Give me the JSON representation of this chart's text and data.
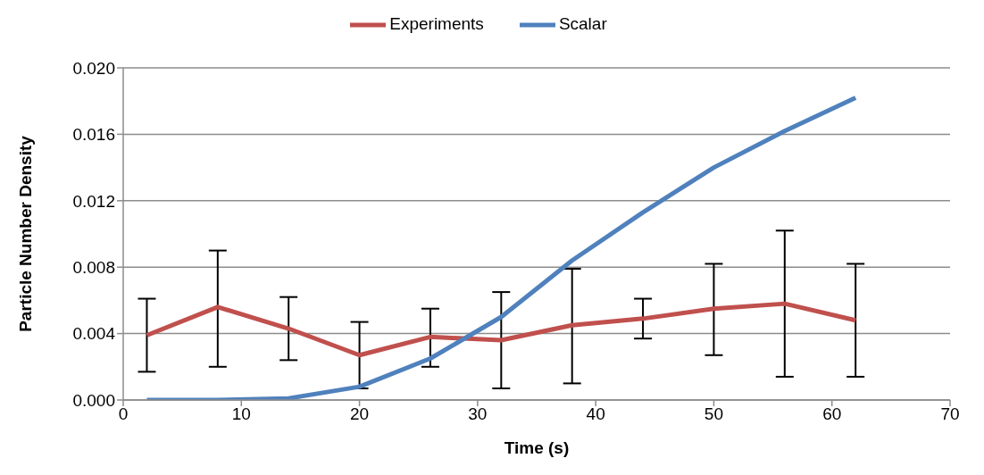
{
  "chart_data": {
    "type": "line",
    "xlabel": "Time (s)",
    "ylabel": "Particle Number Density",
    "x": [
      2,
      8,
      14,
      20,
      26,
      32,
      38,
      44,
      50,
      56,
      62
    ],
    "series": [
      {
        "name": "Experiments",
        "color": "#c0504d",
        "values": [
          0.0039,
          0.0056,
          0.0043,
          0.0027,
          0.0038,
          0.0036,
          0.0045,
          0.0049,
          0.0055,
          0.0058,
          0.0048
        ],
        "errors": [
          [
            0.0017,
            0.0061
          ],
          [
            0.002,
            0.009
          ],
          [
            0.0024,
            0.0062
          ],
          [
            0.0007,
            0.0047
          ],
          [
            0.002,
            0.0055
          ],
          [
            0.0007,
            0.0065
          ],
          [
            0.001,
            0.0079
          ],
          [
            0.0037,
            0.0061
          ],
          [
            0.0027,
            0.0082
          ],
          [
            0.0014,
            0.0102
          ],
          [
            0.0014,
            0.0082
          ]
        ]
      },
      {
        "name": "Scalar",
        "color": "#4f81bd",
        "values": [
          0,
          0,
          0.0001,
          0.0008,
          0.0025,
          0.005,
          0.0084,
          0.0113,
          0.014,
          0.0162,
          0.0182
        ]
      }
    ],
    "xlim": [
      0,
      70
    ],
    "xticks": [
      0,
      10,
      20,
      30,
      40,
      50,
      60,
      70
    ],
    "ylim": [
      0,
      0.02
    ],
    "yticks": [
      {
        "value": 0,
        "label": "0.000"
      },
      {
        "value": 0.004,
        "label": "0.004"
      },
      {
        "value": 0.008,
        "label": "0.008"
      },
      {
        "value": 0.012,
        "label": "0.012"
      },
      {
        "value": 0.016,
        "label": "0.016"
      },
      {
        "value": 0.02,
        "label": "0.020"
      }
    ],
    "grid": "y",
    "legend": "top",
    "marker": "none",
    "line_style": "solid"
  }
}
